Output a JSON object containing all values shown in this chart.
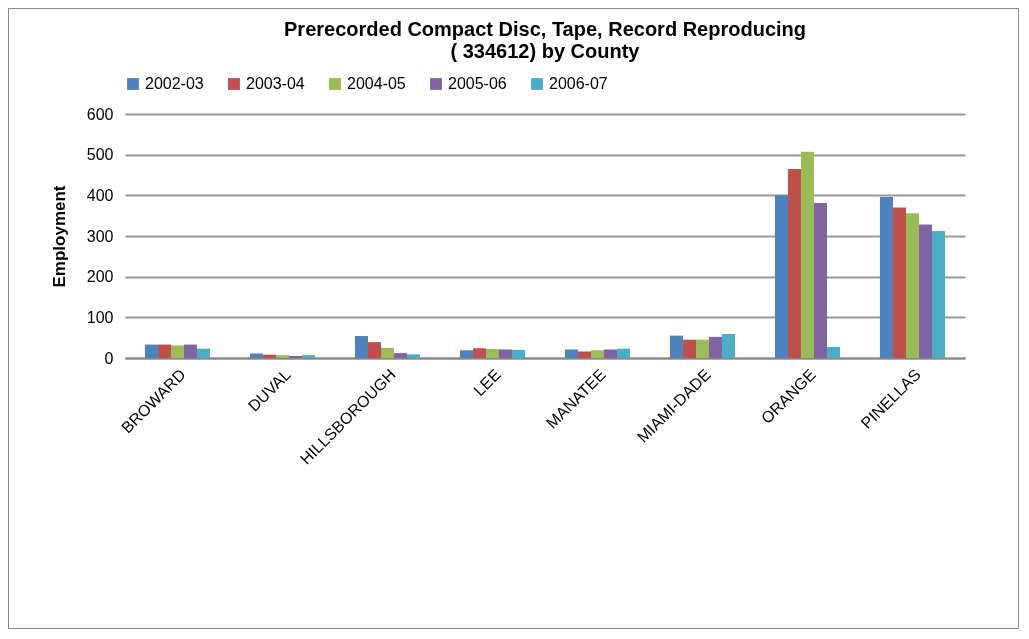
{
  "chart_data": {
    "type": "bar",
    "title": [
      "Prerecorded Compact Disc, Tape, Record Reproducing",
      "( 334612) by County"
    ],
    "ylabel": "Employment",
    "categories": [
      "BROWARD",
      "DUVAL",
      "HILLSBOROUGH",
      "LEE",
      "MANATEE",
      "MIAMI-DADE",
      "ORANGE",
      "PINELLAS"
    ],
    "series": [
      {
        "name": "2002-03",
        "color": "#4f81bd",
        "values": [
          33,
          11,
          54,
          19,
          21,
          55,
          400,
          396
        ]
      },
      {
        "name": "2003-04",
        "color": "#c0504d",
        "values": [
          33,
          8,
          39,
          24,
          16,
          45,
          465,
          370
        ]
      },
      {
        "name": "2004-05",
        "color": "#9bbb59",
        "values": [
          31,
          7,
          25,
          22,
          19,
          45,
          507,
          356
        ]
      },
      {
        "name": "2005-06",
        "color": "#8064a2",
        "values": [
          33,
          5,
          12,
          21,
          21,
          52,
          381,
          328
        ]
      },
      {
        "name": "2006-07",
        "color": "#4bacc6",
        "values": [
          23,
          7,
          9,
          20,
          23,
          59,
          27,
          312
        ]
      }
    ],
    "ylim": [
      0,
      600
    ],
    "yticks": [
      0,
      100,
      200,
      300,
      400,
      500,
      600
    ],
    "grid": "y",
    "legend": "top"
  }
}
